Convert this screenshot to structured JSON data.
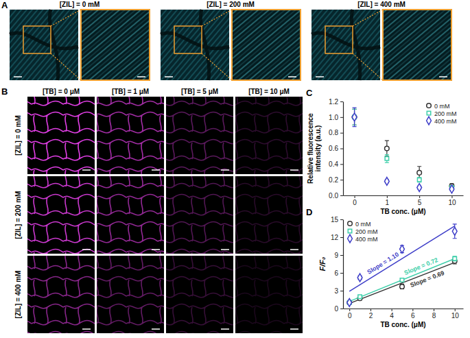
{
  "chart_data": [
    {
      "type": "scatter",
      "categories": [
        "0",
        "1",
        "5",
        "10"
      ],
      "x_label": "TB conc. (μM)",
      "y_label": [
        "Relative fluorescence",
        "intensity (a.u.)"
      ],
      "ylim": [
        0,
        1.2
      ],
      "yticks": [
        {
          "value": 0,
          "label": "0.0"
        },
        0.2,
        0.4,
        0.6,
        0.8,
        {
          "value": 1,
          "label": "1.0"
        },
        1.2
      ],
      "legend": "top-right",
      "series": [
        {
          "name": "0 mM",
          "color": "#333333",
          "marker": "circle",
          "values": [
            1.0,
            0.6,
            0.29,
            0.12
          ],
          "errors": [
            0.1,
            0.1,
            0.08,
            0.03
          ]
        },
        {
          "name": "200 mM",
          "color": "#3ecfaa",
          "marker": "square",
          "values": [
            1.0,
            0.47,
            0.2,
            0.1
          ],
          "errors": [
            0.1,
            0.05,
            0.03,
            0.02
          ]
        },
        {
          "name": "400 mM",
          "color": "#3d3dc8",
          "marker": "diamond",
          "values": [
            1.0,
            0.18,
            0.1,
            0.08
          ],
          "errors": [
            0.12,
            0.02,
            0.02,
            0.02
          ]
        }
      ]
    },
    {
      "type": "scatter",
      "x": [
        0,
        1,
        5,
        10
      ],
      "xlim": [
        -0.6,
        10.8
      ],
      "xticks": [
        0,
        2,
        4,
        6,
        8,
        10
      ],
      "x_label": "TB conc. (μM)",
      "y_label": "F/F₀",
      "ylim": [
        0,
        15
      ],
      "yticks": [
        0,
        3,
        6,
        9,
        12,
        15
      ],
      "legend": "top-left",
      "series": [
        {
          "name": "0 mM",
          "color": "#333333",
          "marker": "circle",
          "values": [
            1.0,
            1.7,
            3.7,
            8.0
          ],
          "errors": [
            0.1,
            0.2,
            0.4,
            0.5
          ]
        },
        {
          "name": "200 mM",
          "color": "#3ecfaa",
          "marker": "square",
          "values": [
            1.0,
            2.0,
            4.8,
            8.4
          ],
          "errors": [
            0.1,
            0.2,
            0.3,
            0.4
          ]
        },
        {
          "name": "400 mM",
          "color": "#3d3dc8",
          "marker": "diamond",
          "values": [
            1.0,
            5.2,
            10.0,
            13.0
          ],
          "errors": [
            0.2,
            0.3,
            0.6,
            1.2
          ]
        }
      ],
      "fits": [
        {
          "label": "Slope = 0.69",
          "color": "#333333",
          "x": [
            0,
            10
          ],
          "values": [
            0.85,
            7.75
          ]
        },
        {
          "label": "Slope = 0.72",
          "color": "#3ecfaa",
          "x": [
            0,
            10
          ],
          "values": [
            1.2,
            8.4
          ]
        },
        {
          "label": "Slope = 1.10",
          "color": "#3d3dc8",
          "x": [
            0,
            10
          ],
          "values": [
            2.9,
            13.9
          ]
        }
      ]
    }
  ],
  "figure": {
    "panel_labels": [
      "A",
      "B",
      "C",
      "D"
    ],
    "panel_a": {
      "titles": [
        "[ZIL] = 0 mM",
        "[ZIL] = 200 mM",
        "[ZIL] = 400 mM"
      ]
    },
    "panel_b": {
      "column_titles": [
        "[TB] = 0 μM",
        "[TB] = 1 μM",
        "[TB] = 5 μM",
        "[TB] = 10 μM"
      ],
      "row_titles": [
        "[ZIL] = 0 mM",
        "[ZIL] = 200 mM",
        "[ZIL] = 400 mM"
      ]
    }
  }
}
